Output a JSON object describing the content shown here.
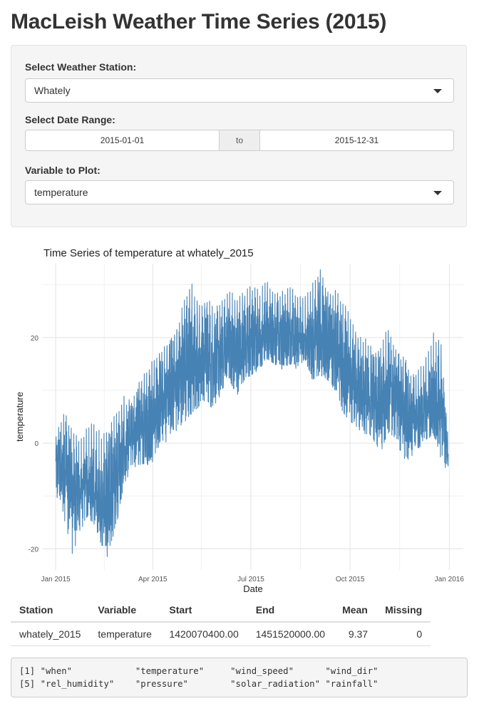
{
  "page": {
    "title": "MacLeish Weather Time Series (2015)"
  },
  "controls": {
    "station_label": "Select Weather Station:",
    "station_value": "Whately",
    "date_label": "Select Date Range:",
    "date_start": "2015-01-01",
    "date_sep": "to",
    "date_end": "2015-12-31",
    "variable_label": "Variable to Plot:",
    "variable_value": "temperature"
  },
  "plot": {
    "title": "Time Series of temperature at whately_2015",
    "xlabel": "Date",
    "ylabel": "temperature",
    "line_color": "#4682B4"
  },
  "chart_data": {
    "type": "line",
    "title": "Time Series of temperature at whately_2015",
    "xlabel": "Date",
    "ylabel": "temperature",
    "x_ticks": [
      "Jan 2015",
      "Apr 2015",
      "Jul 2015",
      "Oct 2015",
      "Jan 2016"
    ],
    "y_ticks": [
      -20,
      0,
      20
    ],
    "xlim": [
      "2014-12-20",
      "2016-01-14"
    ],
    "ylim": [
      -24,
      34
    ],
    "grid": true,
    "series": [
      {
        "color": "#4682B4",
        "x": [
          "2015-01-01",
          "2015-01-08",
          "2015-01-15",
          "2015-01-22",
          "2015-01-29",
          "2015-02-05",
          "2015-02-12",
          "2015-02-19",
          "2015-02-26",
          "2015-03-05",
          "2015-03-12",
          "2015-03-19",
          "2015-03-26",
          "2015-04-02",
          "2015-04-09",
          "2015-04-16",
          "2015-04-23",
          "2015-04-30",
          "2015-05-07",
          "2015-05-14",
          "2015-05-21",
          "2015-05-28",
          "2015-06-04",
          "2015-06-11",
          "2015-06-18",
          "2015-06-25",
          "2015-07-02",
          "2015-07-09",
          "2015-07-16",
          "2015-07-23",
          "2015-07-30",
          "2015-08-06",
          "2015-08-13",
          "2015-08-20",
          "2015-08-27",
          "2015-09-03",
          "2015-09-10",
          "2015-09-17",
          "2015-09-24",
          "2015-10-01",
          "2015-10-08",
          "2015-10-15",
          "2015-10-22",
          "2015-10-29",
          "2015-11-05",
          "2015-11-12",
          "2015-11-19",
          "2015-11-26",
          "2015-12-03",
          "2015-12-10",
          "2015-12-17",
          "2015-12-24",
          "2015-12-31"
        ],
        "min": [
          -10,
          -13,
          -22,
          -18,
          -14,
          -15,
          -19,
          -22,
          -16,
          -8,
          -5,
          -4,
          -6,
          -3,
          -1,
          1,
          2,
          4,
          5,
          7,
          8,
          6,
          10,
          12,
          9,
          12,
          13,
          14,
          16,
          15,
          14,
          15,
          14,
          16,
          12,
          13,
          12,
          10,
          6,
          4,
          3,
          1,
          0,
          -2,
          2,
          1,
          -4,
          -3,
          -1,
          0,
          2,
          -3,
          -6
        ],
        "max": [
          2,
          6,
          4,
          1,
          3,
          4,
          2,
          3,
          6,
          9,
          8,
          12,
          14,
          16,
          18,
          20,
          22,
          27,
          31,
          26,
          28,
          26,
          27,
          29,
          28,
          29,
          30,
          29,
          31,
          29,
          29,
          30,
          29,
          28,
          31,
          33,
          30,
          29,
          28,
          24,
          21,
          20,
          18,
          19,
          23,
          18,
          17,
          14,
          14,
          16,
          21,
          20,
          1
        ],
        "mean": [
          -4,
          -5,
          -8,
          -9,
          -8,
          -9,
          -11,
          -10,
          -6,
          -2,
          1,
          3,
          4,
          6,
          8,
          10,
          12,
          14,
          16,
          15,
          18,
          15,
          17,
          18,
          17,
          19,
          20,
          20,
          21,
          20,
          20,
          21,
          20,
          20,
          19,
          21,
          19,
          18,
          14,
          12,
          10,
          9,
          8,
          7,
          10,
          9,
          6,
          5,
          5,
          6,
          8,
          7,
          -2
        ]
      }
    ]
  },
  "summary": {
    "headers": [
      "Station",
      "Variable",
      "Start",
      "End",
      "Mean",
      "Missing"
    ],
    "row": [
      "whately_2015",
      "temperature",
      "1420070400.00",
      "1451520000.00",
      "9.37",
      "0"
    ]
  },
  "console": {
    "line1": "[1] \"when\"            \"temperature\"     \"wind_speed\"      \"wind_dir\"",
    "line2": "[5] \"rel_humidity\"    \"pressure\"        \"solar_radiation\" \"rainfall\""
  }
}
